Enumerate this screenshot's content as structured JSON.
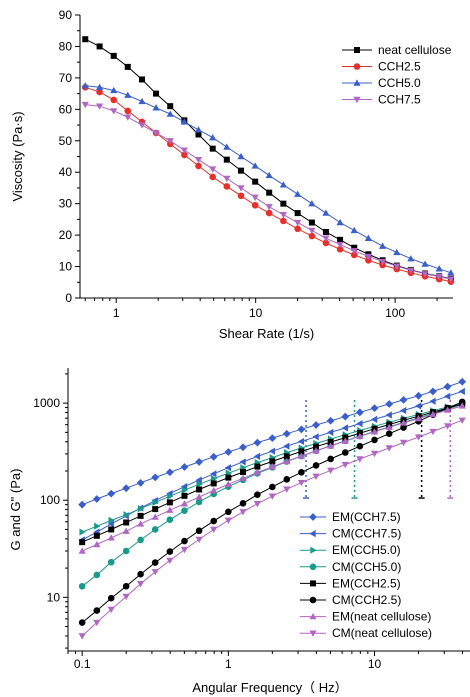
{
  "chart_data": [
    {
      "type": "line",
      "xscale": "log",
      "xlim": [
        0.55,
        260
      ],
      "ylim": [
        0,
        90
      ],
      "xlabel": "Shear Rate (1/s)",
      "ylabel": "Viscosity (Pa·s)",
      "xtick_labels": [
        "1",
        "10",
        "100"
      ],
      "ytick_labels": [
        "0",
        "10",
        "20",
        "30",
        "40",
        "50",
        "60",
        "70",
        "80",
        "90"
      ],
      "legend_position": "top-right",
      "grid": false,
      "x": [
        0.6,
        0.76,
        0.96,
        1.21,
        1.53,
        1.93,
        2.44,
        3.08,
        3.89,
        4.92,
        6.21,
        7.85,
        9.92,
        12.5,
        15.8,
        20.0,
        25.3,
        31.9,
        40.3,
        50.9,
        64.3,
        81.3,
        102.7,
        129.7,
        163.9,
        207.0,
        251.0
      ],
      "series": [
        {
          "name": "neat cellulose",
          "marker": "square",
          "color": "#000000",
          "values": [
            82.3,
            80.0,
            77.0,
            73.5,
            69.5,
            65.0,
            61.0,
            56.5,
            52.0,
            47.5,
            44.0,
            40.5,
            37.0,
            33.5,
            30.0,
            27.0,
            24.0,
            21.0,
            18.5,
            16.0,
            13.9,
            12.0,
            10.3,
            8.9,
            7.8,
            6.9,
            6.1
          ]
        },
        {
          "name": "CCH2.5",
          "marker": "circle",
          "color": "#e8302a",
          "values": [
            67.0,
            65.5,
            63.0,
            59.5,
            56.0,
            52.5,
            49.0,
            45.5,
            42.0,
            38.5,
            35.5,
            32.5,
            29.5,
            27.0,
            24.5,
            22.0,
            19.7,
            17.5,
            15.5,
            13.7,
            12.0,
            10.5,
            9.2,
            8.0,
            6.9,
            6.0,
            5.2
          ]
        },
        {
          "name": "CCH5.0",
          "marker": "triangle-up",
          "color": "#3a5fcd",
          "values": [
            67.5,
            67.0,
            66.0,
            64.5,
            62.5,
            60.5,
            58.5,
            56.0,
            53.5,
            51.0,
            48.0,
            45.0,
            42.0,
            39.0,
            36.0,
            33.0,
            30.0,
            27.0,
            24.0,
            21.5,
            19.0,
            16.5,
            14.5,
            12.5,
            10.8,
            9.3,
            8.0
          ]
        },
        {
          "name": "CCH7.5",
          "marker": "triangle-down",
          "color": "#b266c4",
          "values": [
            61.5,
            61.0,
            59.5,
            57.5,
            55.0,
            52.5,
            50.0,
            47.0,
            44.0,
            41.0,
            38.0,
            35.0,
            32.0,
            29.0,
            26.5,
            24.0,
            21.5,
            19.0,
            17.0,
            15.0,
            13.2,
            11.6,
            10.1,
            8.8,
            7.7,
            6.8,
            6.0
          ]
        }
      ]
    },
    {
      "type": "line",
      "xscale": "log",
      "yscale": "log",
      "xlim": [
        0.08,
        45
      ],
      "ylim": [
        2.8,
        2300
      ],
      "xlabel": "Angular Frequency（ Hz）",
      "ylabel": "G and G\" (Pa)",
      "xtick_labels": [
        "0.1",
        "1",
        "10"
      ],
      "ytick_labels": [
        "10",
        "100",
        "1000"
      ],
      "legend_position": "bottom-right",
      "grid": false,
      "x": [
        0.1,
        0.126,
        0.158,
        0.2,
        0.251,
        0.316,
        0.398,
        0.501,
        0.631,
        0.794,
        1.0,
        1.26,
        1.58,
        2.0,
        2.51,
        3.16,
        3.98,
        5.01,
        6.31,
        7.94,
        10.0,
        12.6,
        15.8,
        20.0,
        25.1,
        31.6,
        39.8
      ],
      "crossover_lines": [
        {
          "x": 3.4,
          "color": "#3a5fcd"
        },
        {
          "x": 7.3,
          "color": "#1a9a8a"
        },
        {
          "x": 21.0,
          "color": "#000000"
        },
        {
          "x": 33.0,
          "color": "#b266c4"
        }
      ],
      "series": [
        {
          "name": "EM(CCH7.5)",
          "marker": "diamond",
          "color": "#3a5fcd",
          "values": [
            90,
            103,
            117,
            133,
            151,
            172,
            194,
            220,
            248,
            280,
            314,
            351,
            392,
            436,
            484,
            537,
            595,
            658,
            727,
            804,
            888,
            980,
            1080,
            1190,
            1320,
            1480,
            1660
          ]
        },
        {
          "name": "CM(CCH7.5)",
          "marker": "triangle-left",
          "color": "#3a5fcd",
          "values": [
            39,
            47,
            57,
            69,
            83,
            99,
            117,
            138,
            161,
            187,
            216,
            248,
            283,
            320,
            360,
            403,
            450,
            500,
            555,
            615,
            680,
            755,
            840,
            935,
            1045,
            1175,
            1320
          ]
        },
        {
          "name": "EM(CCH5.0)",
          "marker": "triangle-right",
          "color": "#1a9a8a",
          "values": [
            47,
            54,
            62,
            71,
            82,
            95,
            110,
            127,
            146,
            167,
            190,
            216,
            244,
            275,
            309,
            345,
            384,
            427,
            473,
            523,
            577,
            635,
            697,
            764,
            835,
            912,
            995
          ]
        },
        {
          "name": "CM(CCH5.0)",
          "marker": "circle",
          "color": "#1a9a8a",
          "values": [
            13,
            17,
            23,
            30,
            39,
            50,
            63,
            78,
            96,
            116,
            138,
            162,
            189,
            218,
            250,
            285,
            323,
            364,
            408,
            457,
            511,
            570,
            635,
            706,
            785,
            873,
            970
          ]
        },
        {
          "name": "EM(CCH2.5)",
          "marker": "square",
          "color": "#000000",
          "values": [
            37,
            43,
            50,
            59,
            69,
            81,
            95,
            111,
            129,
            149,
            171,
            195,
            222,
            251,
            283,
            318,
            356,
            397,
            442,
            491,
            544,
            602,
            665,
            734,
            808,
            889,
            977
          ]
        },
        {
          "name": "CM(CCH2.5)",
          "marker": "circle",
          "color": "#000000",
          "values": [
            5.5,
            7.3,
            9.8,
            13,
            17.3,
            22.8,
            29.6,
            38,
            48.5,
            61,
            76,
            93,
            114,
            137,
            164,
            194,
            228,
            266,
            310,
            360,
            418,
            484,
            560,
            650,
            760,
            890,
            1030
          ]
        },
        {
          "name": "EM(neat cellulose)",
          "marker": "triangle-up",
          "color": "#b266c4",
          "values": [
            30,
            35,
            41,
            48,
            57,
            67,
            79,
            92,
            108,
            126,
            146,
            168,
            193,
            221,
            251,
            285,
            322,
            362,
            406,
            454,
            506,
            563,
            625,
            693,
            767,
            848,
            936
          ]
        },
        {
          "name": "CM(neat cellulose)",
          "marker": "triangle-down",
          "color": "#b266c4",
          "values": [
            4.0,
            5.5,
            7.5,
            10.2,
            13.8,
            18.3,
            24,
            31,
            39.5,
            50,
            62,
            76,
            92,
            110,
            130,
            152,
            176,
            203,
            233,
            266,
            303,
            345,
            393,
            447,
            510,
            582,
            665
          ]
        }
      ]
    }
  ]
}
